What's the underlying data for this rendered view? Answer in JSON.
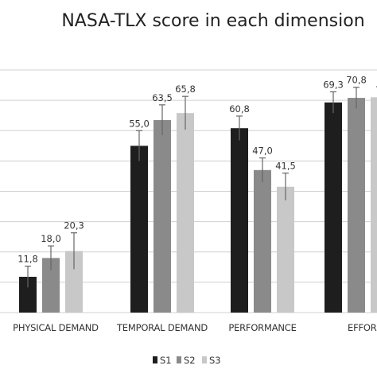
{
  "chart_data": {
    "type": "bar",
    "title": "NASA-TLX score in each dimension",
    "categories_visible_prefix": "D",
    "categories": [
      "PHYSICAL DEMAND",
      "TEMPORAL DEMAND",
      "PERFORMANCE",
      "EFFORT"
    ],
    "category_labels": [
      "PHYSICAL DEMAND",
      "TEMPORAL DEMAND",
      "PERFORMANCE",
      "EFFOR"
    ],
    "series": [
      {
        "name": "S1",
        "color": "#1e1e1e",
        "values": [
          11.8,
          55.0,
          60.8,
          69.3
        ],
        "labels": [
          "11,8",
          "55,0",
          "60,8",
          "69,3"
        ],
        "errors": [
          3.5,
          5.0,
          4.0,
          3.5
        ]
      },
      {
        "name": "S2",
        "color": "#8a8a8a",
        "values": [
          18.0,
          63.5,
          47.0,
          70.8
        ],
        "labels": [
          "18,0",
          "63,5",
          "47,0",
          "70,8"
        ],
        "errors": [
          4.0,
          5.0,
          4.0,
          3.5
        ]
      },
      {
        "name": "S3",
        "color": "#c8c8c8",
        "values": [
          20.3,
          65.8,
          41.5,
          71.0
        ],
        "labels": [
          "20,3",
          "65,8",
          "41,5",
          ""
        ],
        "errors": [
          6.0,
          5.5,
          4.5,
          3.5
        ]
      }
    ],
    "ylim": [
      0,
      80
    ],
    "grid": true,
    "legend": "bottom"
  }
}
